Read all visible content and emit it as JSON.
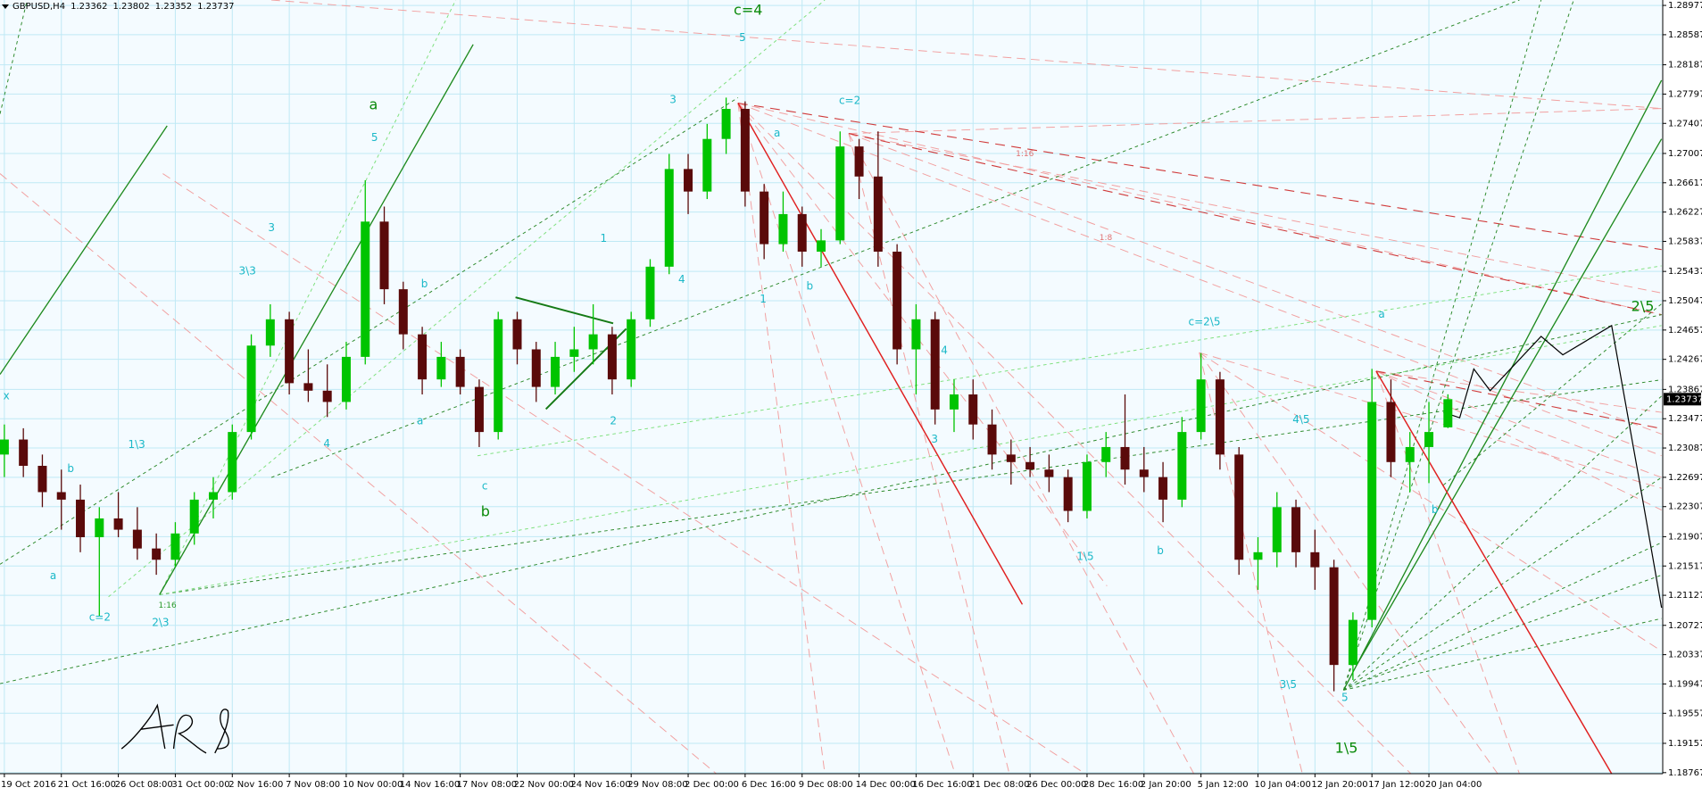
{
  "chart_data": {
    "type": "candlestick",
    "title": "GBPUSD,H4",
    "candles": {
      "open": [
        1.23,
        1.232,
        1.2285,
        1.225,
        1.224,
        1.219,
        1.2215,
        1.22,
        1.2175,
        1.216,
        1.2195,
        1.224,
        1.225,
        1.233,
        1.2445,
        1.248,
        1.2395,
        1.2385,
        1.237,
        1.243,
        1.261,
        1.252,
        1.246,
        1.24,
        1.243,
        1.239,
        1.233,
        1.248,
        1.244,
        1.239,
        1.243,
        1.244,
        1.246,
        1.24,
        1.248,
        1.255,
        1.268,
        1.265,
        1.272,
        1.276,
        1.265,
        1.258,
        1.262,
        1.257,
        1.2585,
        1.271,
        1.267,
        1.257,
        1.244,
        1.248,
        1.236,
        1.238,
        1.234,
        1.23,
        1.229,
        1.228,
        1.227,
        1.2225,
        1.229,
        1.231,
        1.228,
        1.227,
        1.224,
        1.233,
        1.24,
        1.23,
        1.216,
        1.217,
        1.223,
        1.217,
        1.215,
        1.202,
        1.208,
        1.237,
        1.229,
        1.231,
        1.23362
      ],
      "high": [
        1.234,
        1.2335,
        1.23,
        1.228,
        1.226,
        1.223,
        1.225,
        1.223,
        1.2195,
        1.221,
        1.225,
        1.227,
        1.234,
        1.246,
        1.25,
        1.249,
        1.244,
        1.242,
        1.245,
        1.2665,
        1.263,
        1.253,
        1.247,
        1.245,
        1.244,
        1.24,
        1.249,
        1.249,
        1.245,
        1.245,
        1.247,
        1.25,
        1.247,
        1.249,
        1.256,
        1.27,
        1.27,
        1.274,
        1.2775,
        1.277,
        1.266,
        1.265,
        1.263,
        1.26,
        1.273,
        1.272,
        1.273,
        1.258,
        1.25,
        1.249,
        1.24,
        1.24,
        1.236,
        1.232,
        1.231,
        1.23,
        1.228,
        1.23,
        1.233,
        1.238,
        1.231,
        1.229,
        1.235,
        1.2435,
        1.241,
        1.231,
        1.219,
        1.225,
        1.224,
        1.22,
        1.216,
        1.209,
        1.2414,
        1.24,
        1.233,
        1.237,
        1.23802
      ],
      "low": [
        1.227,
        1.227,
        1.223,
        1.22,
        1.217,
        1.2085,
        1.219,
        1.216,
        1.214,
        1.215,
        1.218,
        1.2215,
        1.224,
        1.232,
        1.243,
        1.238,
        1.237,
        1.235,
        1.236,
        1.242,
        1.25,
        1.244,
        1.238,
        1.239,
        1.238,
        1.231,
        1.232,
        1.242,
        1.237,
        1.238,
        1.241,
        1.242,
        1.238,
        1.239,
        1.247,
        1.254,
        1.262,
        1.264,
        1.27,
        1.263,
        1.256,
        1.257,
        1.255,
        1.255,
        1.258,
        1.264,
        1.255,
        1.242,
        1.238,
        1.234,
        1.233,
        1.232,
        1.228,
        1.226,
        1.227,
        1.225,
        1.221,
        1.2215,
        1.227,
        1.226,
        1.225,
        1.221,
        1.223,
        1.232,
        1.228,
        1.214,
        1.212,
        1.215,
        1.215,
        1.212,
        1.1985,
        1.2,
        1.207,
        1.227,
        1.225,
        1.2262,
        1.23352
      ],
      "close": [
        1.232,
        1.2285,
        1.225,
        1.224,
        1.219,
        1.2215,
        1.22,
        1.2175,
        1.216,
        1.2195,
        1.224,
        1.225,
        1.233,
        1.2445,
        1.248,
        1.2395,
        1.2385,
        1.237,
        1.243,
        1.261,
        1.252,
        1.246,
        1.24,
        1.243,
        1.239,
        1.233,
        1.248,
        1.244,
        1.239,
        1.243,
        1.244,
        1.246,
        1.24,
        1.248,
        1.255,
        1.268,
        1.265,
        1.272,
        1.276,
        1.265,
        1.258,
        1.262,
        1.257,
        1.2585,
        1.271,
        1.267,
        1.257,
        1.244,
        1.248,
        1.236,
        1.238,
        1.234,
        1.23,
        1.229,
        1.228,
        1.227,
        1.2225,
        1.229,
        1.231,
        1.228,
        1.227,
        1.224,
        1.233,
        1.24,
        1.23,
        1.216,
        1.217,
        1.223,
        1.217,
        1.215,
        1.202,
        1.208,
        1.237,
        1.229,
        1.231,
        1.233,
        1.23737
      ]
    },
    "up_color": "#00c400",
    "down_color": "#5a0a0a",
    "xlim": [
      -0.23,
      87.31
    ],
    "xticks": [
      {
        "value": 0,
        "label": "19 Oct 2016"
      },
      {
        "value": 3,
        "label": "21 Oct 16:00"
      },
      {
        "value": 6,
        "label": "26 Oct 08:00"
      },
      {
        "value": 9,
        "label": "31 Oct 00:00"
      },
      {
        "value": 12,
        "label": "2 Nov 16:00"
      },
      {
        "value": 15,
        "label": "7 Nov 08:00"
      },
      {
        "value": 18,
        "label": "10 Nov 00:00"
      },
      {
        "value": 21,
        "label": "14 Nov 16:00"
      },
      {
        "value": 24,
        "label": "17 Nov 08:00"
      },
      {
        "value": 27,
        "label": "22 Nov 00:00"
      },
      {
        "value": 30,
        "label": "24 Nov 16:00"
      },
      {
        "value": 33,
        "label": "29 Nov 08:00"
      },
      {
        "value": 36,
        "label": "2 Dec 00:00"
      },
      {
        "value": 39,
        "label": "6 Dec 16:00"
      },
      {
        "value": 42,
        "label": "9 Dec 08:00"
      },
      {
        "value": 45,
        "label": "14 Dec 00:00"
      },
      {
        "value": 48,
        "label": "16 Dec 16:00"
      },
      {
        "value": 51,
        "label": "21 Dec 08:00"
      },
      {
        "value": 54,
        "label": "26 Dec 00:00"
      },
      {
        "value": 57,
        "label": "28 Dec 16:00"
      },
      {
        "value": 60,
        "label": "2 Jan 20:00"
      },
      {
        "value": 63,
        "label": "5 Jan 12:00"
      },
      {
        "value": 66,
        "label": "10 Jan 04:00"
      },
      {
        "value": 69,
        "label": "12 Jan 20:00"
      },
      {
        "value": 72,
        "label": "17 Jan 12:00"
      },
      {
        "value": 75,
        "label": "20 Jan 04:00"
      }
    ],
    "ylim": [
      1.18753,
      1.29049
    ],
    "yticks": [
      1.28977,
      1.28587,
      1.28187,
      1.27797,
      1.27407,
      1.27007,
      1.26617,
      1.26227,
      1.25837,
      1.25437,
      1.25047,
      1.24657,
      1.24267,
      1.23867,
      1.23477,
      1.23087,
      1.22697,
      1.22307,
      1.21907,
      1.21517,
      1.21127,
      1.20727,
      1.20337,
      1.19947,
      1.19557,
      1.19157,
      1.18767
    ],
    "grid": true,
    "annotations": [
      "c=4",
      "a",
      "b",
      "c=2",
      "c=2\\5",
      "1\\5",
      "2\\5",
      "3\\5",
      "4\\5",
      "1\\3",
      "2\\3",
      "3\\3",
      "c=2",
      "5",
      "3",
      "1",
      "2",
      "3",
      "4",
      "5",
      "1",
      "a",
      "b",
      "a",
      "b",
      "c",
      "a",
      "b",
      "a",
      "b",
      "3",
      "4",
      "5",
      "1\\5",
      "b",
      "4",
      "x",
      "1:16",
      "1:16",
      "1:8"
    ]
  }
}
